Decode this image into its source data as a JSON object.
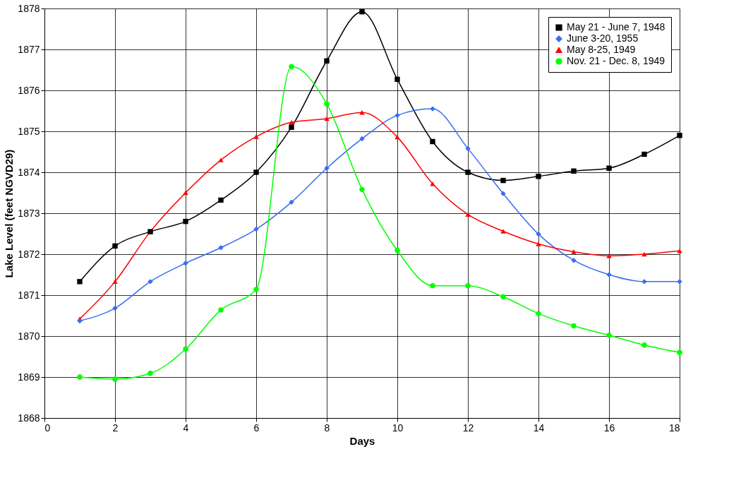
{
  "chart_data": {
    "type": "line",
    "xlabel": "Days",
    "ylabel": "Lake Level (feet NGVD29)",
    "x": [
      1,
      2,
      3,
      4,
      5,
      6,
      7,
      8,
      9,
      10,
      11,
      12,
      13,
      14,
      15,
      16,
      17,
      18
    ],
    "xlim": [
      0,
      18
    ],
    "xticks": [
      0,
      2,
      4,
      6,
      8,
      10,
      12,
      14,
      16,
      18
    ],
    "ylim": [
      1868,
      1878
    ],
    "yticks": [
      1868,
      1869,
      1870,
      1871,
      1872,
      1873,
      1874,
      1875,
      1876,
      1877,
      1878
    ],
    "grid": true,
    "legend": "top right",
    "line_style": "solid",
    "series": [
      {
        "name": "May 21 - June 7, 1948",
        "color": "#000000",
        "marker": "square",
        "values": [
          1871.33,
          1872.2,
          1872.55,
          1872.8,
          1873.32,
          1874.0,
          1875.1,
          1876.72,
          1877.92,
          1876.27,
          1874.75,
          1874.0,
          1873.8,
          1873.9,
          1874.03,
          1874.1,
          1874.44,
          1874.9
        ]
      },
      {
        "name": "June 3-20, 1955",
        "color": "#3a6cf4",
        "marker": "diamond",
        "values": [
          1870.37,
          1870.68,
          1871.33,
          1871.78,
          1872.16,
          1872.61,
          1873.27,
          1874.1,
          1874.82,
          1875.39,
          1875.55,
          1874.58,
          1873.48,
          1872.49,
          1871.85,
          1871.5,
          1871.33,
          1871.33
        ]
      },
      {
        "name": "May 8-25, 1949",
        "color": "#ff0000",
        "marker": "triangle",
        "values": [
          1870.42,
          1871.33,
          1872.55,
          1873.5,
          1874.3,
          1874.87,
          1875.22,
          1875.31,
          1875.46,
          1874.86,
          1873.72,
          1872.97,
          1872.56,
          1872.25,
          1872.06,
          1871.96,
          1872.0,
          1872.08
        ]
      },
      {
        "name": "Nov. 21 - Dec. 8, 1949",
        "color": "#00ff00",
        "marker": "circle",
        "values": [
          1869.0,
          1868.95,
          1869.09,
          1869.68,
          1870.64,
          1871.14,
          1876.58,
          1875.67,
          1873.58,
          1872.09,
          1871.23,
          1871.23,
          1870.96,
          1870.55,
          1870.25,
          1870.02,
          1869.78,
          1869.6
        ]
      }
    ]
  }
}
